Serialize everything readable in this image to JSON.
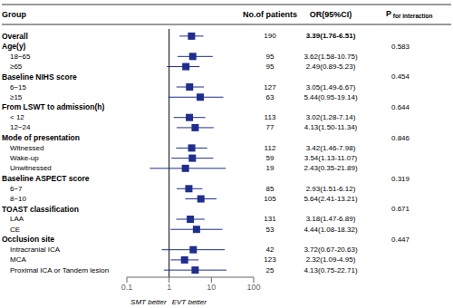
{
  "chart_data": {
    "type": "forest",
    "columns": [
      "Group",
      "No.of patients",
      "OR(95%CI)",
      "P for interaction"
    ],
    "categories": [
      "Overall",
      "Age(y)",
      "18−65",
      "≥65",
      "Baseline NIHS score",
      "6−15",
      "≥15",
      "From LSWT to admission(h)",
      "< 12",
      "12−24",
      "Mode of presentation",
      "Witnessed",
      "Wake-up",
      "Unwitnessed",
      "Baseline ASPECT score",
      "6−7",
      "8−10",
      "TOAST classification",
      "LAA",
      "CE",
      "Occlusion site",
      "Intracranial ICA",
      "MCA",
      "Proximal ICA or Tandem lesion"
    ],
    "n": [
      190,
      null,
      95,
      95,
      null,
      127,
      63,
      null,
      113,
      77,
      null,
      112,
      59,
      19,
      null,
      85,
      105,
      null,
      131,
      53,
      null,
      42,
      123,
      25
    ],
    "or_text": [
      "3.39(1.76-6.51)",
      null,
      "3.62(1.58-10.75)",
      "2.49(0.89-5.23)",
      null,
      "3.05(1.49-6.67)",
      "5.44(0.95-19.14)",
      null,
      "3.02(1.28-7.14)",
      "4.13(1.50-11.34)",
      null,
      "3.42(1.46-7.98)",
      "3.54(1.13-11.07)",
      "2.43(0.35-21.89)",
      null,
      "2.93(1.51-6.12)",
      "5.64(2.41-13.21)",
      null,
      "3.18(1.47-6.89)",
      "4.44(1.08-18.32)",
      null,
      "3.72(0.67-20.63)",
      "2.32(1.09-4.95)",
      "4.13(0.75-22.71)"
    ],
    "values": [
      3.39,
      null,
      3.62,
      2.49,
      null,
      3.05,
      5.44,
      null,
      3.02,
      4.13,
      null,
      3.42,
      3.54,
      2.43,
      null,
      2.93,
      5.64,
      null,
      3.18,
      4.44,
      null,
      3.72,
      2.32,
      4.13
    ],
    "ci_lo": [
      1.76,
      null,
      1.58,
      0.89,
      null,
      1.49,
      0.95,
      null,
      1.28,
      1.5,
      null,
      1.46,
      1.13,
      0.35,
      null,
      1.51,
      2.41,
      null,
      1.47,
      1.08,
      null,
      0.67,
      1.09,
      0.75
    ],
    "ci_hi": [
      6.51,
      null,
      10.75,
      5.23,
      null,
      6.67,
      19.14,
      null,
      7.14,
      11.34,
      null,
      7.98,
      11.07,
      21.89,
      null,
      6.12,
      13.21,
      null,
      6.89,
      18.32,
      null,
      20.63,
      4.95,
      22.71
    ],
    "p": [
      null,
      0.583,
      null,
      null,
      0.454,
      null,
      null,
      0.644,
      null,
      null,
      0.846,
      null,
      null,
      null,
      0.319,
      null,
      null,
      0.671,
      null,
      null,
      0.447,
      null,
      null,
      null
    ],
    "ref_line": 1,
    "annotations": [
      "SMT better",
      "EVT better"
    ],
    "xlim": [
      0.1,
      100
    ],
    "xticks": [
      0.1,
      1,
      10,
      100
    ],
    "log": "x",
    "color": "#1f2e8c",
    "grid": false
  }
}
